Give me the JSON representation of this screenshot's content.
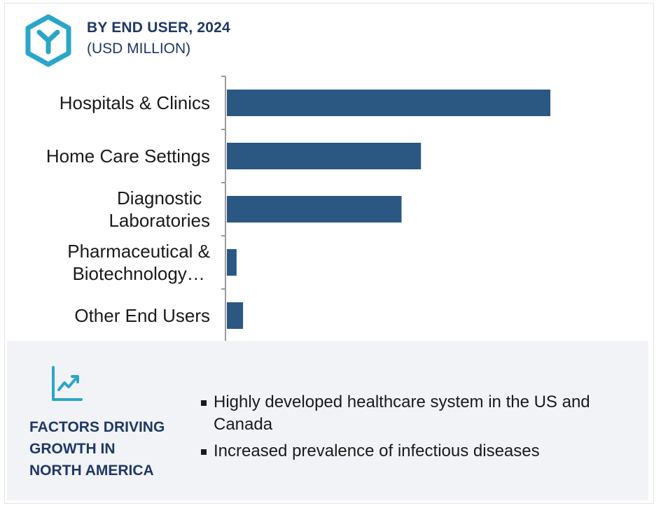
{
  "header": {
    "title": "BY END USER, 2024",
    "subtitle": "(USD MILLION)"
  },
  "colors": {
    "bar": "#2b5783",
    "accent": "#2aa6c8",
    "heading": "#1f3864"
  },
  "chart_data": {
    "type": "bar",
    "orientation": "horizontal",
    "categories": [
      "Hospitals & Clinics",
      "Home Care Settings",
      "Diagnostic\nLaboratories",
      "Pharmaceutical &\nBiotechnology…",
      "Other End Users"
    ],
    "values": [
      100,
      60,
      54,
      3,
      5
    ],
    "title": "BY END USER, 2024",
    "xlabel": "",
    "ylabel": "",
    "xlim": [
      0,
      100
    ],
    "grid": false,
    "legend": "none"
  },
  "factors": {
    "icon": "line-chart-icon",
    "title": "FACTORS DRIVING\nGROWTH IN\nNORTH AMERICA",
    "bullets": [
      "Highly developed healthcare system in the US and Canada",
      "Increased prevalence of infectious diseases"
    ]
  }
}
